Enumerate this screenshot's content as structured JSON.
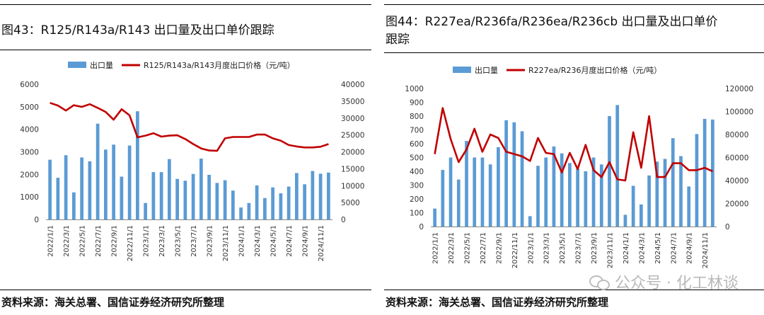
{
  "left": {
    "title": "图43：R125/R143a/R143 出口量及出口单价跟踪",
    "source": "资料来源：海关总署、国信证券经济研究所整理"
  },
  "right": {
    "title_line1": "图44：R227ea/R236fa/R236ea/R236cb 出口量及出口单价",
    "title_line2": "跟踪",
    "source": "资料来源：海关总署、国信证券经济研究所整理"
  },
  "watermark": "公众号 · 化工林谈",
  "chart_data": [
    {
      "type": "bar+line",
      "categories": [
        "2022/1/1",
        "2022/2/1",
        "2022/3/1",
        "2022/4/1",
        "2022/5/1",
        "2022/6/1",
        "2022/7/1",
        "2022/8/1",
        "2022/9/1",
        "2022/10/1",
        "2022/11/1",
        "2022/12/1",
        "2023/1/1",
        "2023/2/1",
        "2023/3/1",
        "2023/4/1",
        "2023/5/1",
        "2023/6/1",
        "2023/7/1",
        "2023/8/1",
        "2023/9/1",
        "2023/10/1",
        "2023/11/1",
        "2023/12/1",
        "2024/1/1",
        "2024/2/1",
        "2024/3/1",
        "2024/4/1",
        "2024/5/1",
        "2024/6/1",
        "2024/7/1",
        "2024/8/1",
        "2024/9/1",
        "2024/10/1",
        "2024/11/1",
        "2024/12/1"
      ],
      "xtick_labels": [
        "2022/1/1",
        "2022/3/1",
        "2022/5/1",
        "2022/7/1",
        "2022/9/1",
        "2022/11/1",
        "2023/1/1",
        "2023/3/1",
        "2023/5/1",
        "2023/7/1",
        "2023/9/1",
        "2023/11/1",
        "2024/1/1",
        "2024/3/1",
        "2024/5/1",
        "2024/7/1",
        "2024/9/1",
        "2024/11/1"
      ],
      "series": [
        {
          "name": "出口量",
          "kind": "bar",
          "axis": "left",
          "color": "#5b9bd5",
          "values": [
            2650,
            1850,
            2850,
            1200,
            2750,
            2580,
            4250,
            3100,
            3320,
            1900,
            3280,
            4800,
            730,
            2100,
            2100,
            2680,
            1800,
            1720,
            2020,
            2700,
            1980,
            1620,
            1740,
            1280,
            530,
            730,
            1510,
            950,
            1420,
            1160,
            1460,
            2060,
            1560,
            2150,
            2030,
            2080
          ]
        },
        {
          "name": "R125/R143a/R143月度出口价格（元/吨）",
          "kind": "line",
          "axis": "right",
          "color": "#c00000",
          "values": [
            34500,
            33700,
            32200,
            33800,
            33300,
            34100,
            33000,
            31800,
            29500,
            32600,
            30800,
            24300,
            24800,
            25500,
            24500,
            24800,
            24900,
            23800,
            22300,
            21000,
            20400,
            20300,
            24000,
            24400,
            24400,
            24400,
            25100,
            25100,
            24000,
            23300,
            22000,
            21600,
            21300,
            21300,
            21500,
            22300
          ]
        }
      ],
      "y_left": {
        "min": 0,
        "max": 6000,
        "ticks": [
          "0",
          "1000",
          "2000",
          "3000",
          "4000",
          "5000",
          "6000"
        ]
      },
      "y_right": {
        "min": 0,
        "max": 40000,
        "ticks": [
          "0",
          "5000",
          "10000",
          "15000",
          "20000",
          "25000",
          "30000",
          "35000",
          "40000"
        ]
      },
      "legend": "top"
    },
    {
      "type": "bar+line",
      "categories": [
        "2022/1/1",
        "2022/2/1",
        "2022/3/1",
        "2022/4/1",
        "2022/5/1",
        "2022/6/1",
        "2022/7/1",
        "2022/8/1",
        "2022/9/1",
        "2022/10/1",
        "2022/11/1",
        "2022/12/1",
        "2023/1/1",
        "2023/2/1",
        "2023/3/1",
        "2023/4/1",
        "2023/5/1",
        "2023/6/1",
        "2023/7/1",
        "2023/8/1",
        "2023/9/1",
        "2023/10/1",
        "2023/11/1",
        "2023/12/1",
        "2024/1/1",
        "2024/2/1",
        "2024/3/1",
        "2024/4/1",
        "2024/5/1",
        "2024/6/1",
        "2024/7/1",
        "2024/8/1",
        "2024/9/1",
        "2024/10/1",
        "2024/11/1",
        "2024/12/1"
      ],
      "xtick_labels": [
        "2022/1/1",
        "2022/3/1",
        "2022/5/1",
        "2022/7/1",
        "2022/9/1",
        "2022/11/1",
        "2023/1/1",
        "2023/3/1",
        "2023/5/1",
        "2023/7/1",
        "2023/9/1",
        "2023/11/1",
        "2024/1/1",
        "2024/3/1",
        "2024/5/1",
        "2024/7/1",
        "2024/9/1",
        "2024/11/1"
      ],
      "series": [
        {
          "name": "出口量",
          "kind": "bar",
          "axis": "left",
          "color": "#5b9bd5",
          "values": [
            130,
            410,
            500,
            340,
            620,
            500,
            500,
            450,
            575,
            770,
            755,
            690,
            75,
            440,
            500,
            580,
            530,
            460,
            420,
            400,
            500,
            450,
            800,
            880,
            85,
            295,
            160,
            370,
            470,
            490,
            640,
            510,
            290,
            670,
            780,
            775
          ]
        },
        {
          "name": "R227ea/R236月度出口价格（元/吨）",
          "kind": "line",
          "axis": "right",
          "color": "#c00000",
          "values": [
            63000,
            103000,
            76000,
            56000,
            67000,
            85000,
            65000,
            80000,
            77000,
            65000,
            63000,
            61000,
            57000,
            77000,
            64000,
            63000,
            47000,
            64000,
            50000,
            71000,
            49000,
            43000,
            56000,
            41000,
            40000,
            82000,
            51000,
            96000,
            43000,
            43000,
            55000,
            55000,
            49000,
            49000,
            51000,
            48000
          ]
        }
      ],
      "y_left": {
        "min": 0,
        "max": 1000,
        "ticks": [
          "0",
          "100",
          "200",
          "300",
          "400",
          "500",
          "600",
          "700",
          "800",
          "900",
          "1000"
        ]
      },
      "y_right": {
        "min": 0,
        "max": 120000,
        "ticks": [
          "0",
          "20000",
          "40000",
          "60000",
          "80000",
          "100000",
          "120000"
        ]
      },
      "legend": "top"
    }
  ]
}
